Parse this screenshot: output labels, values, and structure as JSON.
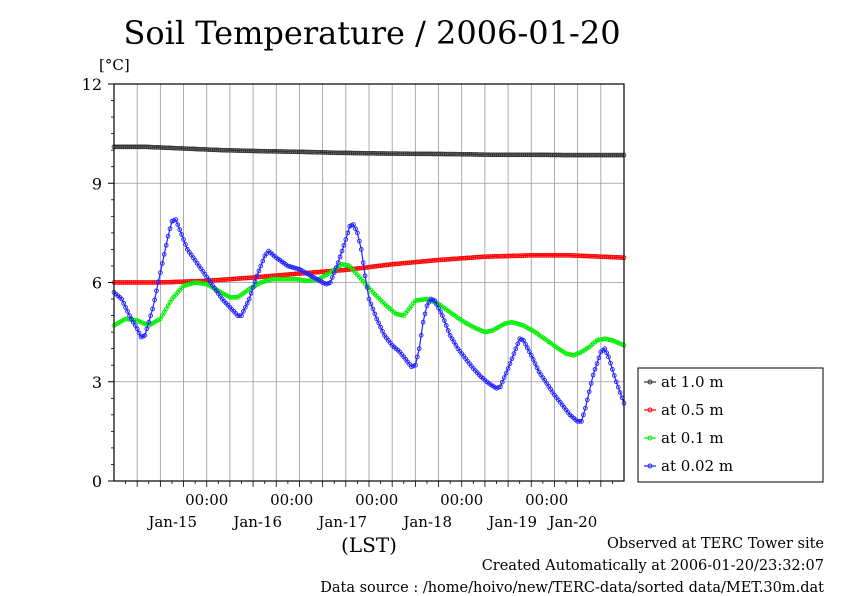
{
  "chart_data": {
    "type": "line",
    "title": "Soil Temperature / 2006-01-20",
    "ylabel": "[°C]",
    "xlabel": "(LST)",
    "ylim": [
      0,
      12
    ],
    "yticks": [
      0,
      3,
      6,
      9,
      12
    ],
    "xlim_hours_from_jan14_0000": [
      12,
      144
    ],
    "xticks": [
      {
        "hour": 36,
        "time": "00:00",
        "date": "Jan-15"
      },
      {
        "hour": 58,
        "time": "00:00",
        "date": "Jan-16"
      },
      {
        "hour": 80,
        "time": "00:00",
        "date": "Jan-17"
      },
      {
        "hour": 102,
        "time": "00:00",
        "date": "Jan-18"
      },
      {
        "hour": 124,
        "time": "00:00",
        "date": "Jan-19"
      }
    ],
    "extra_date_labels": [
      {
        "hour": 137,
        "date": "Jan-20"
      }
    ],
    "grid": true,
    "legend_position": "right",
    "series": [
      {
        "name": "at 1.0 m",
        "color": "#333333",
        "points": [
          [
            12,
            10.1
          ],
          [
            20,
            10.1
          ],
          [
            30,
            10.05
          ],
          [
            40,
            10.0
          ],
          [
            50,
            9.97
          ],
          [
            60,
            9.95
          ],
          [
            70,
            9.92
          ],
          [
            80,
            9.9
          ],
          [
            90,
            9.89
          ],
          [
            100,
            9.88
          ],
          [
            110,
            9.86
          ],
          [
            120,
            9.86
          ],
          [
            130,
            9.85
          ],
          [
            144,
            9.85
          ]
        ]
      },
      {
        "name": "at 0.5 m",
        "color": "#ff0000",
        "points": [
          [
            12,
            6.0
          ],
          [
            24,
            6.0
          ],
          [
            36,
            6.05
          ],
          [
            48,
            6.15
          ],
          [
            60,
            6.27
          ],
          [
            72,
            6.38
          ],
          [
            84,
            6.55
          ],
          [
            96,
            6.68
          ],
          [
            108,
            6.78
          ],
          [
            120,
            6.82
          ],
          [
            130,
            6.82
          ],
          [
            144,
            6.75
          ]
        ]
      },
      {
        "name": "at 0.1 m",
        "color": "#00ee00",
        "points": [
          [
            12,
            4.7
          ],
          [
            15,
            4.9
          ],
          [
            18,
            4.85
          ],
          [
            21,
            4.7
          ],
          [
            24,
            4.9
          ],
          [
            27,
            5.5
          ],
          [
            30,
            5.9
          ],
          [
            33,
            6.0
          ],
          [
            36,
            5.95
          ],
          [
            39,
            5.75
          ],
          [
            42,
            5.55
          ],
          [
            44,
            5.55
          ],
          [
            47,
            5.8
          ],
          [
            50,
            6.0
          ],
          [
            53,
            6.1
          ],
          [
            56,
            6.1
          ],
          [
            59,
            6.1
          ],
          [
            62,
            6.05
          ],
          [
            65,
            6.1
          ],
          [
            68,
            6.3
          ],
          [
            71,
            6.55
          ],
          [
            73,
            6.5
          ],
          [
            76,
            6.1
          ],
          [
            79,
            5.7
          ],
          [
            82,
            5.35
          ],
          [
            85,
            5.05
          ],
          [
            87,
            5.0
          ],
          [
            90,
            5.45
          ],
          [
            93,
            5.5
          ],
          [
            96,
            5.35
          ],
          [
            99,
            5.1
          ],
          [
            102,
            4.85
          ],
          [
            105,
            4.65
          ],
          [
            108,
            4.5
          ],
          [
            110,
            4.55
          ],
          [
            113,
            4.75
          ],
          [
            115,
            4.8
          ],
          [
            118,
            4.7
          ],
          [
            121,
            4.5
          ],
          [
            124,
            4.25
          ],
          [
            127,
            4.0
          ],
          [
            129,
            3.85
          ],
          [
            131,
            3.8
          ],
          [
            133,
            3.9
          ],
          [
            135,
            4.05
          ],
          [
            137,
            4.25
          ],
          [
            139,
            4.3
          ],
          [
            141,
            4.25
          ],
          [
            144,
            4.1
          ]
        ]
      },
      {
        "name": "at 0.02 m",
        "color": "#2222ff",
        "points": [
          [
            12,
            5.7
          ],
          [
            14,
            5.5
          ],
          [
            16,
            5.0
          ],
          [
            18,
            4.6
          ],
          [
            19,
            4.35
          ],
          [
            20,
            4.4
          ],
          [
            22,
            5.2
          ],
          [
            24,
            6.3
          ],
          [
            26,
            7.4
          ],
          [
            27,
            7.85
          ],
          [
            28,
            7.9
          ],
          [
            29,
            7.6
          ],
          [
            31,
            7.0
          ],
          [
            34,
            6.5
          ],
          [
            37,
            6.0
          ],
          [
            40,
            5.5
          ],
          [
            42,
            5.25
          ],
          [
            44,
            5.0
          ],
          [
            45,
            5.0
          ],
          [
            47,
            5.5
          ],
          [
            49,
            6.2
          ],
          [
            51,
            6.8
          ],
          [
            52,
            6.95
          ],
          [
            54,
            6.75
          ],
          [
            57,
            6.5
          ],
          [
            60,
            6.4
          ],
          [
            63,
            6.2
          ],
          [
            66,
            6.0
          ],
          [
            67,
            5.95
          ],
          [
            68,
            6.0
          ],
          [
            70,
            6.6
          ],
          [
            72,
            7.3
          ],
          [
            73,
            7.7
          ],
          [
            74,
            7.75
          ],
          [
            75,
            7.5
          ],
          [
            76,
            7.0
          ],
          [
            77,
            6.2
          ],
          [
            78,
            5.5
          ],
          [
            80,
            4.9
          ],
          [
            82,
            4.4
          ],
          [
            84,
            4.1
          ],
          [
            86,
            3.9
          ],
          [
            88,
            3.6
          ],
          [
            89,
            3.45
          ],
          [
            90,
            3.5
          ],
          [
            91,
            4.0
          ],
          [
            92,
            4.8
          ],
          [
            93,
            5.3
          ],
          [
            94,
            5.5
          ],
          [
            95,
            5.45
          ],
          [
            97,
            5.0
          ],
          [
            99,
            4.4
          ],
          [
            101,
            4.0
          ],
          [
            103,
            3.7
          ],
          [
            105,
            3.4
          ],
          [
            107,
            3.15
          ],
          [
            109,
            2.95
          ],
          [
            111,
            2.8
          ],
          [
            112,
            2.85
          ],
          [
            114,
            3.4
          ],
          [
            116,
            4.0
          ],
          [
            117,
            4.3
          ],
          [
            118,
            4.25
          ],
          [
            120,
            3.8
          ],
          [
            122,
            3.3
          ],
          [
            124,
            2.95
          ],
          [
            126,
            2.6
          ],
          [
            128,
            2.3
          ],
          [
            130,
            2.0
          ],
          [
            132,
            1.8
          ],
          [
            133,
            1.8
          ],
          [
            134,
            2.2
          ],
          [
            136,
            3.2
          ],
          [
            138,
            3.9
          ],
          [
            139,
            4.0
          ],
          [
            140,
            3.75
          ],
          [
            142,
            3.0
          ],
          [
            144,
            2.35
          ]
        ]
      }
    ]
  },
  "footer": {
    "line1": "Observed at TERC Tower site",
    "line2": "Created Automatically at 2006-01-20/23:32:07",
    "line3": "Data source : /home/hoivo/new/TERC-data/sorted  data/MET.30m.dat"
  }
}
